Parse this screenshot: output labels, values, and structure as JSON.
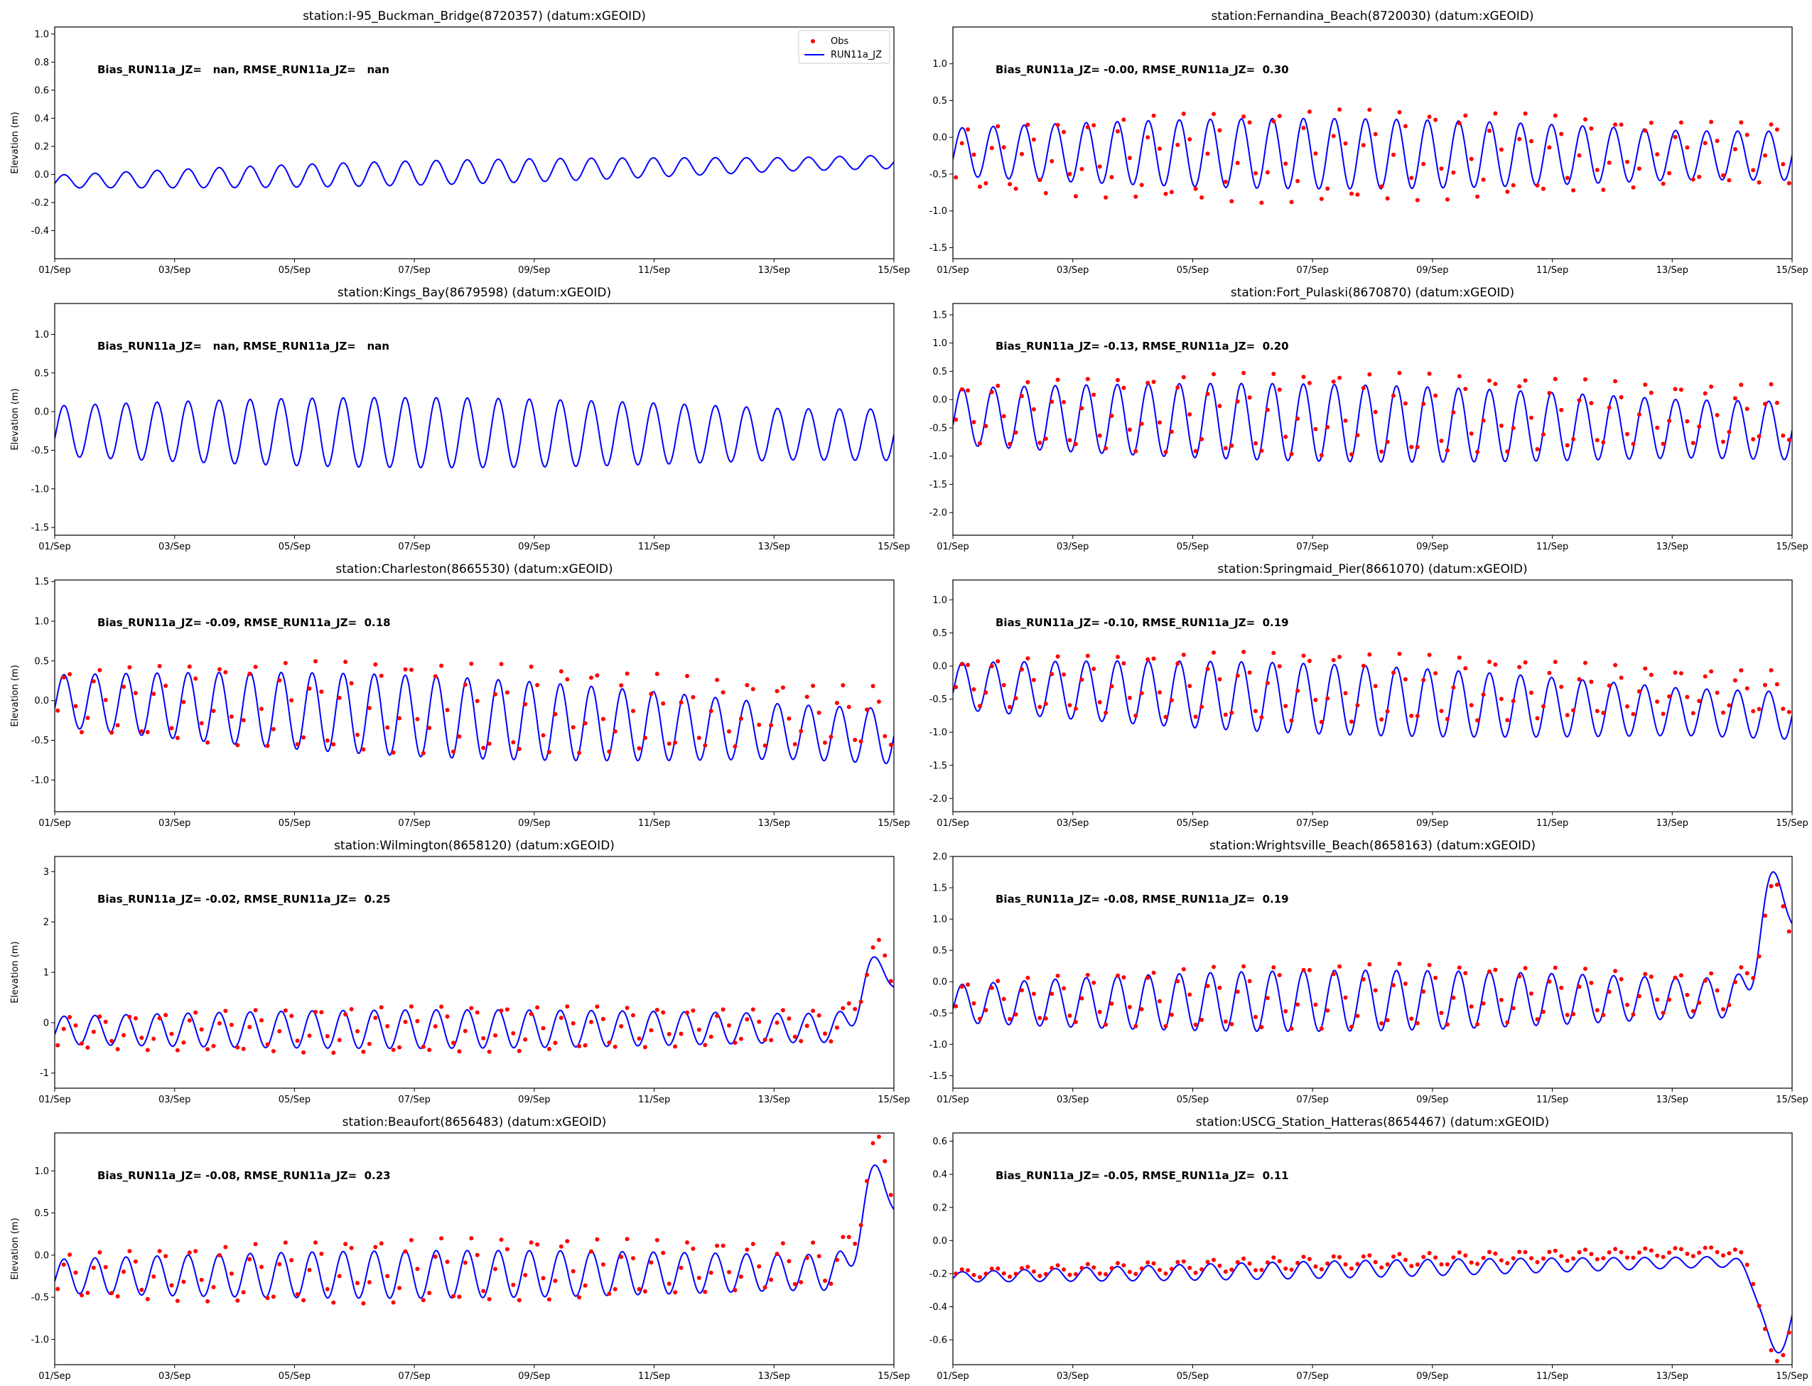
{
  "figure": {
    "x_ticks": [
      "01/Sep",
      "03/Sep",
      "05/Sep",
      "07/Sep",
      "09/Sep",
      "11/Sep",
      "13/Sep",
      "15/Sep"
    ],
    "x_range_days": [
      0,
      14
    ],
    "ylabel": "Elevation (m)",
    "legend": {
      "obs_label": "Obs",
      "model_label": "RUN11a_JZ",
      "placement": "upper-right of first panel"
    },
    "colors": {
      "obs": "#ff0000",
      "model": "#0000ff"
    }
  },
  "chart_data": [
    {
      "type": "line",
      "title": "station:I-95_Buckman_Bridge(8720357) (datum:xGEOID)",
      "stats": "Bias_RUN11a_JZ=   nan, RMSE_RUN11a_JZ=   nan",
      "ylim": [
        -0.6,
        1.05
      ],
      "yticks": [
        "-0.4",
        "-0.2",
        "0.0",
        "0.2",
        "0.4",
        "0.6",
        "0.8",
        "1.0"
      ],
      "ytick_values": [
        -0.4,
        -0.2,
        0.0,
        0.2,
        0.4,
        0.6,
        0.8,
        1.0
      ],
      "show_ylabel": true,
      "has_legend": true,
      "has_obs": false,
      "model": {
        "mean_start": -0.05,
        "mean_end": 0.09,
        "amp_start": 0.09,
        "amp_peak": 0.17,
        "amp_end": 0.11,
        "phase": 0.3,
        "surge": 0
      },
      "obs": null
    },
    {
      "type": "line",
      "title": "station:Fernandina_Beach(8720030) (datum:xGEOID)",
      "stats": "Bias_RUN11a_JZ= -0.00, RMSE_RUN11a_JZ=  0.30",
      "ylim": [
        -1.65,
        1.5
      ],
      "yticks": [
        "-1.5",
        "-1.0",
        "-0.5",
        "0.0",
        "0.5",
        "1.0"
      ],
      "ytick_values": [
        -1.5,
        -1.0,
        -0.5,
        0.0,
        0.5,
        1.0
      ],
      "show_ylabel": false,
      "has_legend": false,
      "has_obs": true,
      "model": {
        "mean_start": -0.2,
        "mean_end": -0.25,
        "amp_start": 0.65,
        "amp_peak": 0.95,
        "amp_end": 0.7,
        "phase": 0.3,
        "surge": 0
      },
      "obs": {
        "mean_start": -0.3,
        "mean_end": -0.2,
        "amp_start": 0.8,
        "amp_peak": 1.25,
        "amp_end": 0.95,
        "phase": 0.45,
        "surge": 0
      }
    },
    {
      "type": "line",
      "title": "station:Kings_Bay(8679598) (datum:xGEOID)",
      "stats": "Bias_RUN11a_JZ=   nan, RMSE_RUN11a_JZ=   nan",
      "ylim": [
        -1.6,
        1.4
      ],
      "yticks": [
        "-1.5",
        "-1.0",
        "-0.5",
        "0.0",
        "0.5",
        "1.0"
      ],
      "ytick_values": [
        -1.5,
        -1.0,
        -0.5,
        0.0,
        0.5,
        1.0
      ],
      "show_ylabel": true,
      "has_legend": false,
      "has_obs": false,
      "model": {
        "mean_start": -0.25,
        "mean_end": -0.3,
        "amp_start": 0.65,
        "amp_peak": 0.9,
        "amp_end": 0.7,
        "phase": 0.3,
        "surge": 0
      },
      "obs": null
    },
    {
      "type": "line",
      "title": "station:Fort_Pulaski(8670870) (datum:xGEOID)",
      "stats": "Bias_RUN11a_JZ= -0.13, RMSE_RUN11a_JZ=  0.20",
      "ylim": [
        -2.4,
        1.7
      ],
      "yticks": [
        "-2.0",
        "-1.5",
        "-1.0",
        "-0.5",
        "0.0",
        "0.5",
        "1.0",
        "1.5"
      ],
      "ytick_values": [
        -2.0,
        -1.5,
        -1.0,
        -0.5,
        0.0,
        0.5,
        1.0,
        1.5
      ],
      "show_ylabel": false,
      "has_legend": false,
      "has_obs": true,
      "model": {
        "mean_start": -0.3,
        "mean_end": -0.55,
        "amp_start": 1.0,
        "amp_peak": 1.35,
        "amp_end": 1.1,
        "phase": 0.3,
        "surge": 0
      },
      "obs": {
        "mean_start": -0.25,
        "mean_end": -0.25,
        "amp_start": 1.0,
        "amp_peak": 1.45,
        "amp_end": 1.15,
        "phase": 0.38,
        "surge": 0
      }
    },
    {
      "type": "line",
      "title": "station:Charleston(8665530) (datum:xGEOID)",
      "stats": "Bias_RUN11a_JZ= -0.09, RMSE_RUN11a_JZ=  0.18",
      "ylim": [
        -1.4,
        1.52
      ],
      "yticks": [
        "-1.0",
        "-0.5",
        "0.0",
        "0.5",
        "1.0",
        "1.5"
      ],
      "ytick_values": [
        -1.0,
        -0.5,
        0.0,
        0.5,
        1.0,
        1.5
      ],
      "show_ylabel": true,
      "has_legend": false,
      "has_obs": true,
      "model": {
        "mean_start": 0.0,
        "mean_end": -0.45,
        "amp_start": 0.65,
        "amp_peak": 1.0,
        "amp_end": 0.8,
        "phase": 0.3,
        "surge": 0
      },
      "obs": {
        "mean_start": 0.0,
        "mean_end": -0.2,
        "amp_start": 0.75,
        "amp_peak": 1.15,
        "amp_end": 0.8,
        "phase": 0.4,
        "surge": 0
      }
    },
    {
      "type": "line",
      "title": "station:Springmaid_Pier(8661070) (datum:xGEOID)",
      "stats": "Bias_RUN11a_JZ= -0.10, RMSE_RUN11a_JZ=  0.19",
      "ylim": [
        -2.2,
        1.3
      ],
      "yticks": [
        "-2.0",
        "-1.5",
        "-1.0",
        "-0.5",
        "0.0",
        "0.5",
        "1.0"
      ],
      "ytick_values": [
        -2.0,
        -1.5,
        -1.0,
        -0.5,
        0.0,
        0.5,
        1.0
      ],
      "show_ylabel": false,
      "has_legend": false,
      "has_obs": true,
      "model": {
        "mean_start": -0.3,
        "mean_end": -0.75,
        "amp_start": 0.7,
        "amp_peak": 1.05,
        "amp_end": 0.75,
        "phase": 0.3,
        "surge": 0
      },
      "obs": {
        "mean_start": -0.25,
        "mean_end": -0.4,
        "amp_start": 0.65,
        "amp_peak": 1.05,
        "amp_end": 0.7,
        "phase": 0.38,
        "surge": 0
      }
    },
    {
      "type": "line",
      "title": "station:Wilmington(8658120) (datum:xGEOID)",
      "stats": "Bias_RUN11a_JZ= -0.02, RMSE_RUN11a_JZ=  0.25",
      "ylim": [
        -1.3,
        3.3
      ],
      "yticks": [
        "-1",
        "0",
        "1",
        "2",
        "3"
      ],
      "ytick_values": [
        -1,
        0,
        1,
        2,
        3
      ],
      "show_ylabel": true,
      "has_legend": false,
      "has_obs": true,
      "model": {
        "mean_start": -0.15,
        "mean_end": -0.1,
        "amp_start": 0.55,
        "amp_peak": 0.75,
        "amp_end": 0.65,
        "phase": 0.3,
        "surge": 1.3
      },
      "obs": {
        "mean_start": -0.2,
        "mean_end": -0.05,
        "amp_start": 0.6,
        "amp_peak": 0.9,
        "amp_end": 0.75,
        "phase": 0.5,
        "surge": 1.5
      }
    },
    {
      "type": "line",
      "title": "station:Wrightsville_Beach(8658163) (datum:xGEOID)",
      "stats": "Bias_RUN11a_JZ= -0.08, RMSE_RUN11a_JZ=  0.19",
      "ylim": [
        -1.7,
        2.0
      ],
      "yticks": [
        "-1.5",
        "-1.0",
        "-0.5",
        "0.0",
        "0.5",
        "1.0",
        "1.5",
        "2.0"
      ],
      "ytick_values": [
        -1.5,
        -1.0,
        -0.5,
        0.0,
        0.5,
        1.0,
        1.5,
        2.0
      ],
      "show_ylabel": false,
      "has_legend": false,
      "has_obs": true,
      "model": {
        "mean_start": -0.35,
        "mean_end": -0.25,
        "amp_start": 0.6,
        "amp_peak": 0.95,
        "amp_end": 0.75,
        "phase": 0.3,
        "surge": 1.85
      },
      "obs": {
        "mean_start": -0.3,
        "mean_end": -0.15,
        "amp_start": 0.55,
        "amp_peak": 1.0,
        "amp_end": 0.8,
        "phase": 0.4,
        "surge": 1.55
      }
    },
    {
      "type": "line",
      "title": "station:Beaufort(8656483) (datum:xGEOID)",
      "stats": "Bias_RUN11a_JZ= -0.08, RMSE_RUN11a_JZ=  0.23",
      "ylim": [
        -1.3,
        1.45
      ],
      "yticks": [
        "-1.0",
        "-0.5",
        "0.0",
        "0.5",
        "1.0"
      ],
      "ytick_values": [
        -1.0,
        -0.5,
        0.0,
        0.5,
        1.0
      ],
      "show_ylabel": true,
      "has_legend": false,
      "has_obs": true,
      "model": {
        "mean_start": -0.25,
        "mean_end": -0.2,
        "amp_start": 0.4,
        "amp_peak": 0.55,
        "amp_end": 0.5,
        "phase": 0.3,
        "surge": 1.15
      },
      "obs": {
        "mean_start": -0.25,
        "mean_end": -0.1,
        "amp_start": 0.5,
        "amp_peak": 0.75,
        "amp_end": 0.6,
        "phase": 0.45,
        "surge": 1.35
      }
    },
    {
      "type": "line",
      "title": "station:USCG_Station_Hatteras(8654467) (datum:xGEOID)",
      "stats": "Bias_RUN11a_JZ= -0.05, RMSE_RUN11a_JZ=  0.11",
      "ylim": [
        -0.75,
        0.65
      ],
      "yticks": [
        "-0.6",
        "-0.4",
        "-0.2",
        "0.0",
        "0.2",
        "0.4",
        "0.6"
      ],
      "ytick_values": [
        -0.6,
        -0.4,
        -0.2,
        0.0,
        0.2,
        0.4,
        0.6
      ],
      "show_ylabel": false,
      "has_legend": false,
      "has_obs": true,
      "model": {
        "mean_start": -0.22,
        "mean_end": -0.12,
        "amp_start": 0.06,
        "amp_peak": 0.1,
        "amp_end": 0.08,
        "phase": 0.3,
        "surge": -0.6
      },
      "obs": {
        "mean_start": -0.2,
        "mean_end": -0.05,
        "amp_start": 0.05,
        "amp_peak": 0.08,
        "amp_end": 0.06,
        "phase": 0.35,
        "surge": -0.7
      }
    }
  ]
}
